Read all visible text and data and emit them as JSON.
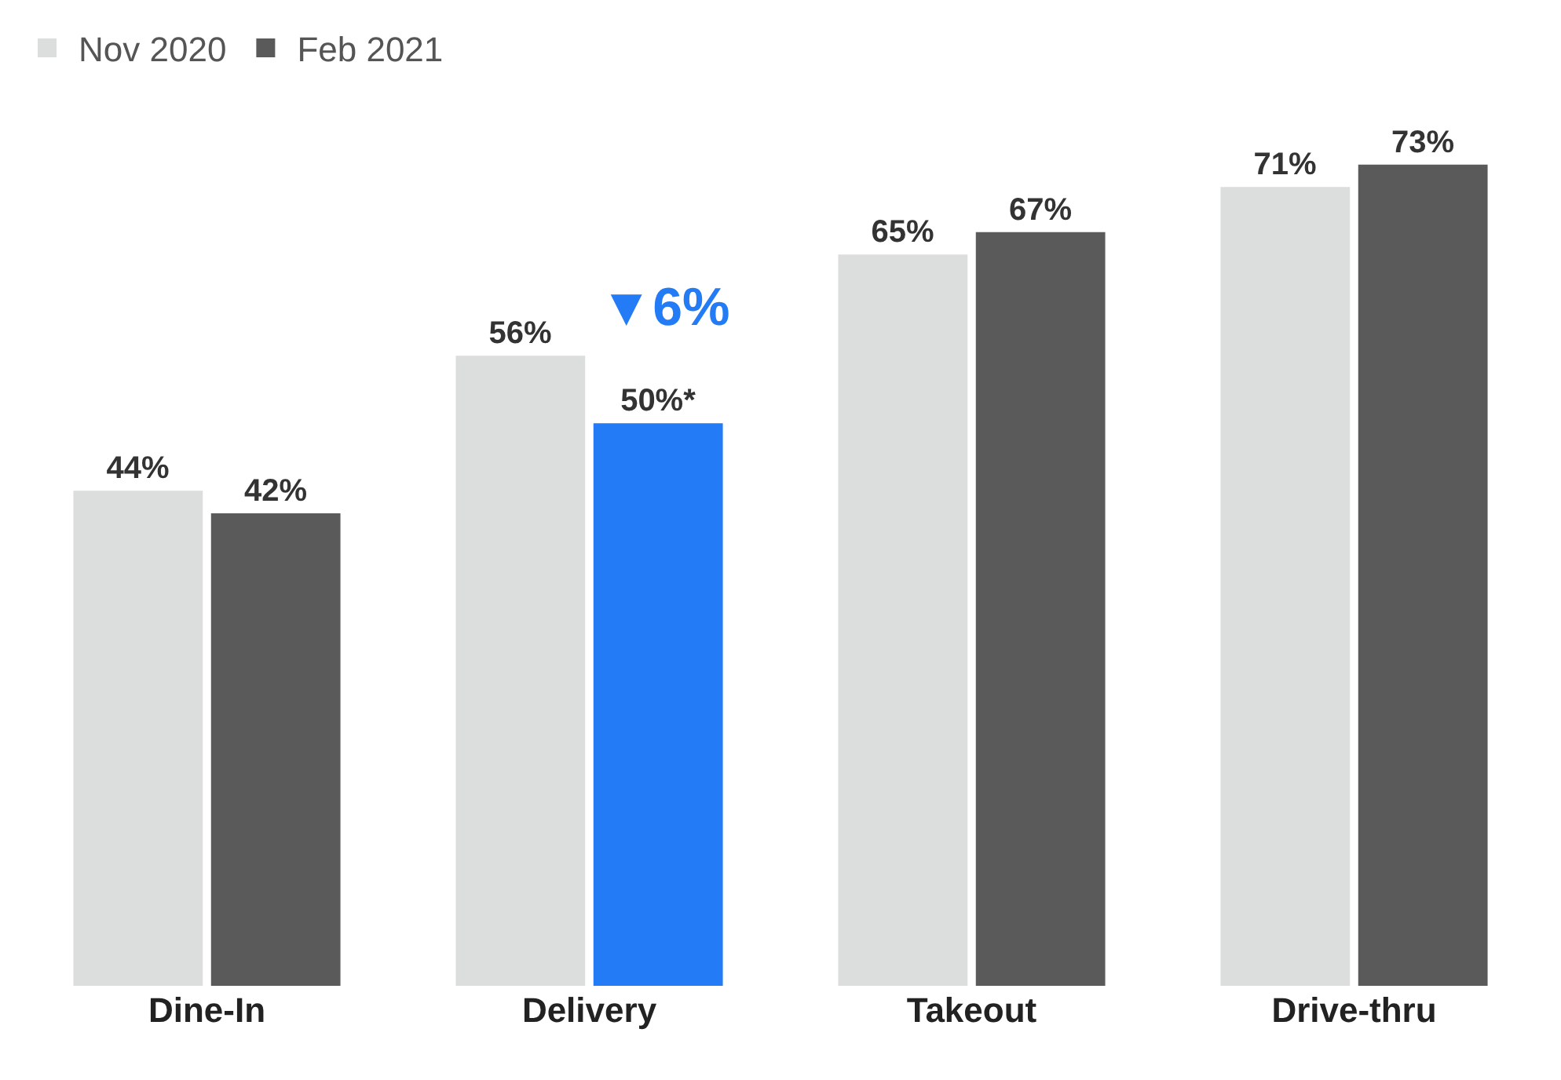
{
  "chart_data": {
    "type": "bar",
    "categories": [
      "Dine-In",
      "Delivery",
      "Takeout",
      "Drive-thru"
    ],
    "series": [
      {
        "name": "Nov 2020",
        "color": "#dcdddd",
        "values": [
          44,
          56,
          65,
          71
        ],
        "value_labels": [
          "44%",
          "56%",
          "65%",
          "71%"
        ]
      },
      {
        "name": "Feb 2021",
        "color": "#5a5a5a",
        "colors": [
          "#5a5a5a",
          "#237bf5",
          "#5a5a5a",
          "#5a5a5a"
        ],
        "values": [
          42,
          50,
          67,
          73
        ],
        "value_labels": [
          "42%",
          "50%*",
          "67%",
          "73%"
        ]
      }
    ],
    "annotations": [
      "▼6%"
    ],
    "legend": "top left"
  }
}
